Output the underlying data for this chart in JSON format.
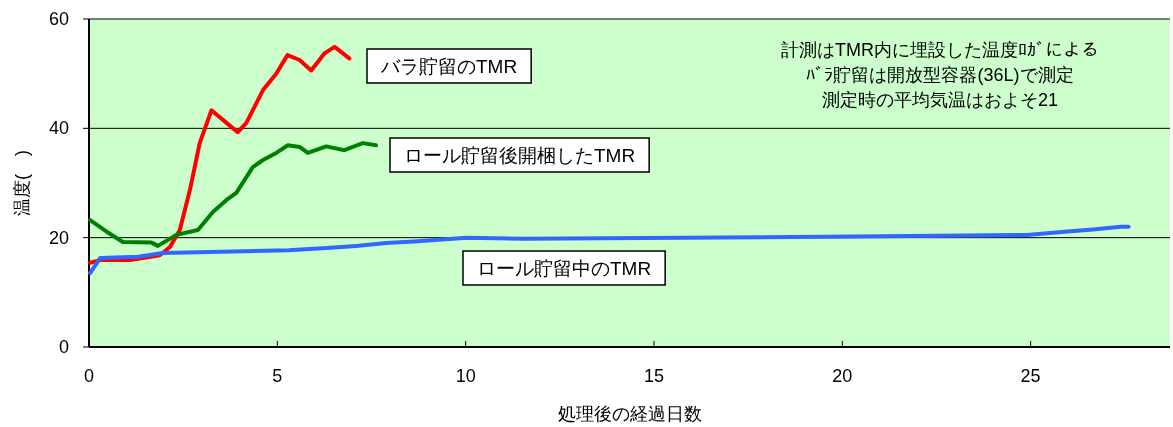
{
  "chart_data": {
    "type": "line",
    "xlabel": "処理後の経過日数",
    "ylabel": "温度(　)",
    "xlim": [
      0,
      28.7
    ],
    "ylim": [
      0,
      60
    ],
    "xticks": [
      0,
      5,
      10,
      15,
      20,
      25
    ],
    "yticks": [
      0,
      20,
      40,
      60
    ],
    "grid": "y",
    "annotations": [
      "計測はTMR内に埋設した温度ﾛｶﾞによる",
      "ﾊﾞﾗ貯留は開放型容器(36L)で測定",
      "測定時の平均気温はおよそ21"
    ],
    "series": [
      {
        "name": "バラ貯留のTMR",
        "color": "#ff0000",
        "x": [
          0.03,
          0.3,
          1.09,
          1.88,
          2.15,
          2.41,
          2.68,
          2.94,
          3.25,
          3.65,
          3.95,
          4.18,
          4.62,
          4.97,
          5.27,
          5.59,
          5.9,
          6.25,
          6.52,
          6.91
        ],
        "values": [
          15.4,
          15.9,
          15.9,
          16.8,
          18.3,
          21.4,
          28.7,
          37.3,
          43.3,
          41.0,
          39.3,
          41.0,
          47.0,
          50.0,
          53.4,
          52.5,
          50.6,
          53.7,
          54.9,
          52.8
        ]
      },
      {
        "name": "ロール貯留後開梱したTMR",
        "color": "#008000",
        "x": [
          0.03,
          0.47,
          0.9,
          1.66,
          1.83,
          2.32,
          2.89,
          3.29,
          3.65,
          3.91,
          4.35,
          4.62,
          4.97,
          5.28,
          5.59,
          5.81,
          6.3,
          6.78,
          7.27,
          7.62
        ],
        "values": [
          23.2,
          21.1,
          19.2,
          19.1,
          18.5,
          20.5,
          21.4,
          24.7,
          26.9,
          28.2,
          32.9,
          34.2,
          35.5,
          36.9,
          36.6,
          35.5,
          36.7,
          36.0,
          37.3,
          36.9
        ]
      },
      {
        "name": "ロール貯留中のTMR",
        "color": "#3366ff",
        "x": [
          0.03,
          0.3,
          1.3,
          1.97,
          5.3,
          6.3,
          7.09,
          7.89,
          8.64,
          10.03,
          11.55,
          20.3,
          24.9,
          25.9,
          26.65,
          27.4,
          27.6
        ],
        "values": [
          13.5,
          16.3,
          16.5,
          17.2,
          17.7,
          18.1,
          18.5,
          19.0,
          19.3,
          20.0,
          19.8,
          20.2,
          20.5,
          21.1,
          21.5,
          22.0,
          22.0
        ]
      }
    ]
  }
}
